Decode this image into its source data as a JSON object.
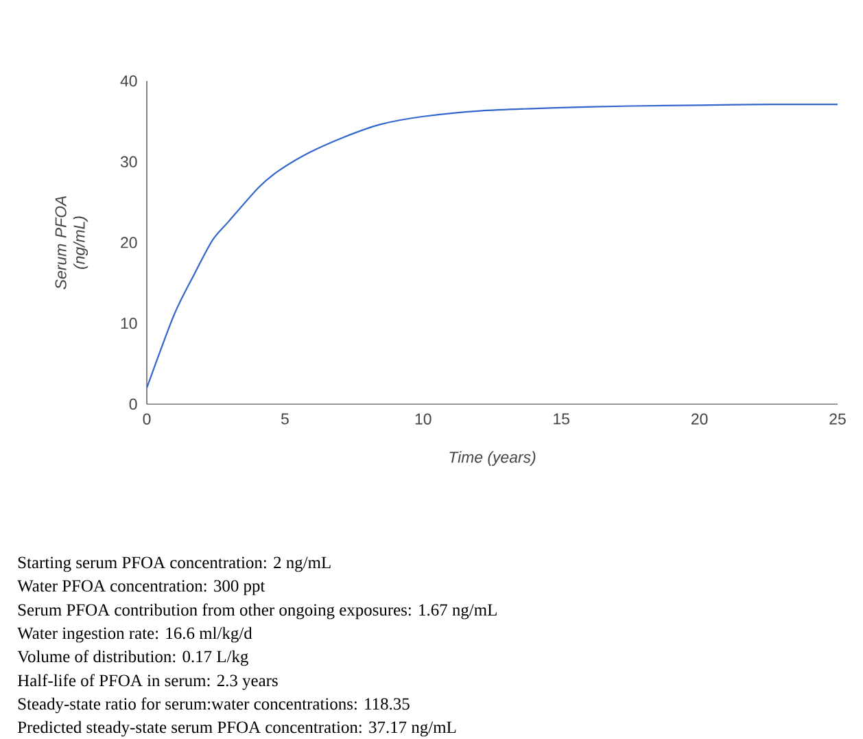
{
  "chart_data": {
    "type": "line",
    "xlabel": "Time (years)",
    "ylabel": "Serum PFOA (ng/mL)",
    "x": [
      0,
      0.98,
      1.72,
      2.38,
      2.96,
      4.04,
      4.78,
      5.86,
      7.1,
      8.42,
      10.0,
      12.06,
      15,
      17.5,
      20,
      22.5,
      25
    ],
    "series": [
      {
        "color": "#3366cc",
        "values": [
          2.0,
          11.0,
          16.1,
          20.3,
          22.6,
          26.8,
          28.9,
          31.1,
          33.0,
          34.6,
          35.6,
          36.3,
          36.7,
          36.9,
          37.0,
          37.1,
          37.1
        ]
      }
    ],
    "xlim": [
      0,
      25
    ],
    "ylim": [
      0,
      40
    ],
    "xticks": [
      0,
      5,
      10,
      15,
      20,
      25
    ],
    "yticks": [
      0,
      10,
      20,
      30,
      40
    ],
    "grid": false,
    "marker": "none",
    "line_style": "solid",
    "annotations": [
      "Starting serum PFOA concentration: 2 ng/mL",
      "Water PFOA concentration: 300 ppt",
      "Serum PFOA contribution from other ongoing exposures: 1.67 ng/mL",
      "Water ingestion rate: 16.6 ml/kg/d",
      "Volume of distribution: 0.17 L/kg",
      "Half-life of PFOA in serum: 2.3 years",
      "Steady-state ratio for serum:water concentrations: 118.35",
      "Predicted steady-state serum PFOA concentration: 37.17 ng/mL"
    ]
  }
}
